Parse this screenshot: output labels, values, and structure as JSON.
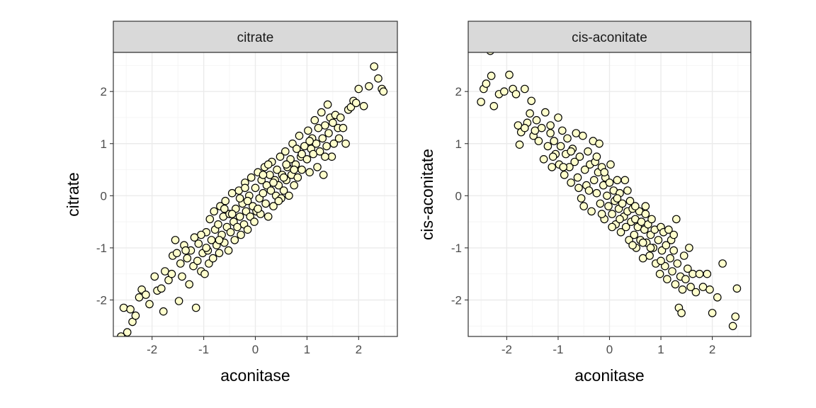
{
  "colors": {
    "point_fill": "#ffffcc",
    "point_stroke": "#000000",
    "strip_fill": "#d9d9d9"
  },
  "chart_data": [
    {
      "type": "scatter",
      "title": "citrate",
      "xlabel": "aconitase",
      "ylabel": "citrate",
      "xlim": [
        -2.75,
        2.75
      ],
      "ylim": [
        -2.7,
        2.75
      ],
      "xticks": [
        -2,
        -1,
        0,
        1,
        2
      ],
      "yticks": [
        -2,
        -1,
        0,
        1,
        2
      ],
      "tick_labels_x": [
        "-2",
        "-1",
        "0",
        "1",
        "2"
      ],
      "tick_labels_y": [
        "-2",
        "-1",
        "0",
        "1",
        "2"
      ],
      "grid": true,
      "points": [
        [
          -2.6,
          -2.7
        ],
        [
          -2.48,
          -2.62
        ],
        [
          -2.55,
          -2.15
        ],
        [
          -2.42,
          -2.18
        ],
        [
          -2.38,
          -2.42
        ],
        [
          -2.32,
          -2.3
        ],
        [
          -2.25,
          -1.95
        ],
        [
          -2.2,
          -1.8
        ],
        [
          -2.12,
          -1.9
        ],
        [
          -2.05,
          -2.08
        ],
        [
          -1.95,
          -1.55
        ],
        [
          -1.9,
          -1.82
        ],
        [
          -1.82,
          -1.78
        ],
        [
          -1.78,
          -2.22
        ],
        [
          -1.75,
          -1.45
        ],
        [
          -1.68,
          -1.62
        ],
        [
          -1.62,
          -1.5
        ],
        [
          -1.6,
          -1.15
        ],
        [
          -1.55,
          -0.85
        ],
        [
          -1.52,
          -1.1
        ],
        [
          -1.48,
          -2.02
        ],
        [
          -1.45,
          -1.3
        ],
        [
          -1.42,
          -1.55
        ],
        [
          -1.38,
          -0.95
        ],
        [
          -1.32,
          -1.2
        ],
        [
          -1.28,
          -1.7
        ],
        [
          -1.25,
          -1.05
        ],
        [
          -1.2,
          -1.35
        ],
        [
          -1.18,
          -0.8
        ],
        [
          -1.15,
          -2.15
        ],
        [
          -1.12,
          -1.25
        ],
        [
          -1.1,
          -0.92
        ],
        [
          -1.05,
          -1.45
        ],
        [
          -1.02,
          -1.1
        ],
        [
          -0.98,
          -1.5
        ],
        [
          -0.95,
          -0.7
        ],
        [
          -0.92,
          -1.05
        ],
        [
          -0.9,
          -1.3
        ],
        [
          -0.88,
          -0.45
        ],
        [
          -0.85,
          -0.85
        ],
        [
          -0.82,
          -1.2
        ],
        [
          -0.8,
          -0.3
        ],
        [
          -0.78,
          -0.65
        ],
        [
          -0.75,
          -0.95
        ],
        [
          -0.72,
          -0.55
        ],
        [
          -0.7,
          -1.1
        ],
        [
          -0.68,
          -0.2
        ],
        [
          -0.65,
          -0.75
        ],
        [
          -0.62,
          -0.4
        ],
        [
          -0.6,
          -0.9
        ],
        [
          -0.58,
          -0.1
        ],
        [
          -0.55,
          -0.6
        ],
        [
          -0.52,
          -1.05
        ],
        [
          -0.5,
          -0.35
        ],
        [
          -0.48,
          -0.7
        ],
        [
          -0.45,
          0.05
        ],
        [
          -0.42,
          -0.5
        ],
        [
          -0.4,
          -0.85
        ],
        [
          -0.38,
          -0.25
        ],
        [
          -0.35,
          -0.6
        ],
        [
          -0.32,
          0.1
        ],
        [
          -0.3,
          -0.4
        ],
        [
          -0.28,
          -0.75
        ],
        [
          -0.25,
          -0.15
        ],
        [
          -0.22,
          -0.55
        ],
        [
          -0.2,
          0.25
        ],
        [
          -0.18,
          -0.3
        ],
        [
          -0.15,
          -0.65
        ],
        [
          -0.12,
          0.0
        ],
        [
          -0.1,
          -0.4
        ],
        [
          -0.08,
          0.35
        ],
        [
          -0.05,
          -0.2
        ],
        [
          -0.02,
          -0.5
        ],
        [
          0.0,
          0.15
        ],
        [
          0.02,
          -0.3
        ],
        [
          0.05,
          0.45
        ],
        [
          0.08,
          -0.05
        ],
        [
          0.1,
          -0.35
        ],
        [
          0.12,
          0.3
        ],
        [
          0.15,
          0.05
        ],
        [
          0.18,
          0.55
        ],
        [
          0.2,
          -0.15
        ],
        [
          0.22,
          0.2
        ],
        [
          0.25,
          -0.4
        ],
        [
          0.28,
          0.4
        ],
        [
          0.3,
          0.1
        ],
        [
          0.32,
          0.65
        ],
        [
          0.35,
          -0.2
        ],
        [
          0.38,
          0.3
        ],
        [
          0.4,
          0.0
        ],
        [
          0.42,
          0.5
        ],
        [
          0.45,
          0.2
        ],
        [
          0.48,
          0.75
        ],
        [
          0.5,
          -0.05
        ],
        [
          0.52,
          0.4
        ],
        [
          0.55,
          0.1
        ],
        [
          0.58,
          0.85
        ],
        [
          0.6,
          0.3
        ],
        [
          0.62,
          0.55
        ],
        [
          0.65,
          0.0
        ],
        [
          0.68,
          0.7
        ],
        [
          0.7,
          0.4
        ],
        [
          0.72,
          1.0
        ],
        [
          0.75,
          0.2
        ],
        [
          0.78,
          0.6
        ],
        [
          0.8,
          0.9
        ],
        [
          0.82,
          0.35
        ],
        [
          0.85,
          1.15
        ],
        [
          0.88,
          0.75
        ],
        [
          0.9,
          0.5
        ],
        [
          0.95,
          0.95
        ],
        [
          1.0,
          0.7
        ],
        [
          1.02,
          1.25
        ],
        [
          1.05,
          0.45
        ],
        [
          1.08,
          0.9
        ],
        [
          1.1,
          1.1
        ],
        [
          1.12,
          0.8
        ],
        [
          1.15,
          1.45
        ],
        [
          1.18,
          1.0
        ],
        [
          1.2,
          0.55
        ],
        [
          1.22,
          1.3
        ],
        [
          1.25,
          0.85
        ],
        [
          1.28,
          1.6
        ],
        [
          1.3,
          1.1
        ],
        [
          1.32,
          0.4
        ],
        [
          1.35,
          1.35
        ],
        [
          1.38,
          0.95
        ],
        [
          1.4,
          1.75
        ],
        [
          1.42,
          1.2
        ],
        [
          1.45,
          1.5
        ],
        [
          1.48,
          0.75
        ],
        [
          1.5,
          1.4
        ],
        [
          1.52,
          1.0
        ],
        [
          1.55,
          1.55
        ],
        [
          1.6,
          1.3
        ],
        [
          1.62,
          1.1
        ],
        [
          1.65,
          1.5
        ],
        [
          1.7,
          1.3
        ],
        [
          1.75,
          1.0
        ],
        [
          1.8,
          1.65
        ],
        [
          1.85,
          1.7
        ],
        [
          1.9,
          1.82
        ],
        [
          1.95,
          1.78
        ],
        [
          2.0,
          2.05
        ],
        [
          2.1,
          1.72
        ],
        [
          2.2,
          2.1
        ],
        [
          2.3,
          2.48
        ],
        [
          2.38,
          2.25
        ],
        [
          2.45,
          2.05
        ],
        [
          2.48,
          2.0
        ],
        [
          -0.95,
          -1.0
        ],
        [
          -0.6,
          -0.25
        ],
        [
          -0.3,
          -0.05
        ],
        [
          -0.2,
          0.15
        ],
        [
          0.05,
          -0.25
        ],
        [
          0.15,
          0.4
        ],
        [
          0.35,
          0.25
        ],
        [
          0.45,
          -0.1
        ],
        [
          0.6,
          0.6
        ],
        [
          0.75,
          0.5
        ],
        [
          -1.35,
          -1.05
        ],
        [
          -1.05,
          -0.75
        ],
        [
          -0.7,
          -0.85
        ],
        [
          -0.45,
          -0.35
        ],
        [
          -0.15,
          -0.1
        ],
        [
          0.25,
          0.6
        ],
        [
          0.55,
          0.35
        ],
        [
          0.9,
          0.8
        ],
        [
          1.05,
          1.05
        ],
        [
          1.35,
          0.75
        ]
      ]
    },
    {
      "type": "scatter",
      "title": "cis-aconitate",
      "xlabel": "aconitase",
      "ylabel": "cis-aconitate",
      "xlim": [
        -2.75,
        2.75
      ],
      "ylim": [
        -2.7,
        2.75
      ],
      "xticks": [
        -2,
        -1,
        0,
        1,
        2
      ],
      "yticks": [
        -2,
        -1,
        0,
        1,
        2
      ],
      "tick_labels_x": [
        "-2",
        "-1",
        "0",
        "1",
        "2"
      ],
      "tick_labels_y": [
        "-2",
        "-1",
        "0",
        "1",
        "2"
      ],
      "grid": true,
      "points": [
        [
          -2.5,
          1.8
        ],
        [
          -2.45,
          2.05
        ],
        [
          -2.4,
          2.15
        ],
        [
          -2.32,
          2.78
        ],
        [
          -2.3,
          2.3
        ],
        [
          -2.25,
          1.72
        ],
        [
          -2.15,
          1.95
        ],
        [
          -2.05,
          2.0
        ],
        [
          -1.95,
          2.32
        ],
        [
          -1.88,
          2.05
        ],
        [
          -1.82,
          1.95
        ],
        [
          -1.78,
          1.35
        ],
        [
          -1.75,
          0.98
        ],
        [
          -1.72,
          1.22
        ],
        [
          -1.65,
          2.05
        ],
        [
          -1.6,
          1.4
        ],
        [
          -1.55,
          1.58
        ],
        [
          -1.52,
          1.82
        ],
        [
          -1.48,
          1.15
        ],
        [
          -1.42,
          1.45
        ],
        [
          -1.38,
          1.05
        ],
        [
          -1.32,
          1.3
        ],
        [
          -1.28,
          0.7
        ],
        [
          -1.25,
          1.6
        ],
        [
          -1.2,
          0.95
        ],
        [
          -1.15,
          1.2
        ],
        [
          -1.12,
          0.55
        ],
        [
          -1.08,
          1.05
        ],
        [
          -1.05,
          0.8
        ],
        [
          -1.0,
          1.5
        ],
        [
          -0.98,
          0.6
        ],
        [
          -0.95,
          0.95
        ],
        [
          -0.92,
          1.25
        ],
        [
          -0.88,
          0.4
        ],
        [
          -0.85,
          0.8
        ],
        [
          -0.82,
          1.1
        ],
        [
          -0.78,
          0.55
        ],
        [
          -0.75,
          0.25
        ],
        [
          -0.72,
          0.9
        ],
        [
          -0.68,
          0.65
        ],
        [
          -0.65,
          1.2
        ],
        [
          -0.62,
          0.35
        ],
        [
          -0.58,
          0.75
        ],
        [
          -0.55,
          -0.05
        ],
        [
          -0.52,
          1.15
        ],
        [
          -0.48,
          0.5
        ],
        [
          -0.45,
          0.2
        ],
        [
          -0.42,
          0.85
        ],
        [
          -0.38,
          0.6
        ],
        [
          -0.35,
          -0.3
        ],
        [
          -0.32,
          1.05
        ],
        [
          -0.3,
          0.3
        ],
        [
          -0.28,
          0.65
        ],
        [
          -0.25,
          0.05
        ],
        [
          -0.22,
          0.45
        ],
        [
          -0.2,
          1.0
        ],
        [
          -0.18,
          -0.15
        ],
        [
          -0.15,
          0.55
        ],
        [
          -0.12,
          0.2
        ],
        [
          -0.1,
          -0.45
        ],
        [
          -0.08,
          0.35
        ],
        [
          -0.05,
          0.0
        ],
        [
          -0.02,
          -0.2
        ],
        [
          0.0,
          0.25
        ],
        [
          0.02,
          0.6
        ],
        [
          0.05,
          -0.35
        ],
        [
          0.08,
          0.1
        ],
        [
          0.1,
          -0.1
        ],
        [
          0.12,
          -0.55
        ],
        [
          0.15,
          0.3
        ],
        [
          0.18,
          -0.25
        ],
        [
          0.2,
          0.05
        ],
        [
          0.22,
          -0.7
        ],
        [
          0.25,
          -0.15
        ],
        [
          0.28,
          -0.4
        ],
        [
          0.3,
          0.3
        ],
        [
          0.32,
          -0.6
        ],
        [
          0.35,
          -0.3
        ],
        [
          0.38,
          -0.85
        ],
        [
          0.4,
          -0.1
        ],
        [
          0.42,
          -0.5
        ],
        [
          0.45,
          -0.25
        ],
        [
          0.48,
          -0.75
        ],
        [
          0.5,
          -0.45
        ],
        [
          0.52,
          -1.0
        ],
        [
          0.55,
          -0.6
        ],
        [
          0.58,
          -0.3
        ],
        [
          0.6,
          -0.85
        ],
        [
          0.62,
          -0.5
        ],
        [
          0.65,
          -1.2
        ],
        [
          0.68,
          -0.65
        ],
        [
          0.7,
          -0.35
        ],
        [
          0.72,
          -0.9
        ],
        [
          0.75,
          -0.55
        ],
        [
          0.78,
          -1.15
        ],
        [
          0.8,
          -0.75
        ],
        [
          0.82,
          -0.45
        ],
        [
          0.85,
          -1.0
        ],
        [
          0.88,
          -0.65
        ],
        [
          0.9,
          -1.3
        ],
        [
          0.95,
          -0.85
        ],
        [
          0.98,
          -1.5
        ],
        [
          1.0,
          -0.6
        ],
        [
          1.02,
          -1.05
        ],
        [
          1.05,
          -0.7
        ],
        [
          1.08,
          -1.35
        ],
        [
          1.1,
          -0.95
        ],
        [
          1.12,
          -1.6
        ],
        [
          1.15,
          -0.65
        ],
        [
          1.18,
          -1.2
        ],
        [
          1.2,
          -0.85
        ],
        [
          1.22,
          -1.45
        ],
        [
          1.25,
          -1.05
        ],
        [
          1.28,
          -1.7
        ],
        [
          1.3,
          -0.45
        ],
        [
          1.32,
          -1.3
        ],
        [
          1.35,
          -2.15
        ],
        [
          1.38,
          -1.55
        ],
        [
          1.4,
          -2.25
        ],
        [
          1.42,
          -1.8
        ],
        [
          1.45,
          -1.15
        ],
        [
          1.48,
          -1.6
        ],
        [
          1.52,
          -1.4
        ],
        [
          1.55,
          -1.0
        ],
        [
          1.58,
          -1.75
        ],
        [
          1.62,
          -1.5
        ],
        [
          1.68,
          -1.85
        ],
        [
          1.75,
          -1.5
        ],
        [
          1.82,
          -1.75
        ],
        [
          1.9,
          -1.5
        ],
        [
          1.95,
          -1.8
        ],
        [
          2.0,
          -2.25
        ],
        [
          2.1,
          -1.95
        ],
        [
          2.2,
          -1.3
        ],
        [
          2.4,
          -2.5
        ],
        [
          2.45,
          -2.32
        ],
        [
          2.48,
          -1.78
        ],
        [
          -1.65,
          1.3
        ],
        [
          -1.15,
          1.35
        ],
        [
          -0.9,
          0.55
        ],
        [
          -0.6,
          0.15
        ],
        [
          -0.4,
          0.1
        ],
        [
          -0.25,
          0.75
        ],
        [
          -0.1,
          0.45
        ],
        [
          0.05,
          -0.6
        ],
        [
          0.2,
          -0.45
        ],
        [
          0.35,
          0.1
        ],
        [
          0.5,
          -0.2
        ],
        [
          0.65,
          -0.9
        ],
        [
          0.8,
          -1.0
        ],
        [
          -1.45,
          1.25
        ],
        [
          -1.1,
          0.75
        ],
        [
          -0.75,
          0.85
        ],
        [
          -0.5,
          -0.2
        ],
        [
          -0.15,
          -0.35
        ],
        [
          0.15,
          -0.05
        ],
        [
          0.45,
          -0.95
        ],
        [
          0.7,
          -0.2
        ],
        [
          1.0,
          -1.25
        ],
        [
          1.25,
          -0.75
        ]
      ]
    }
  ]
}
